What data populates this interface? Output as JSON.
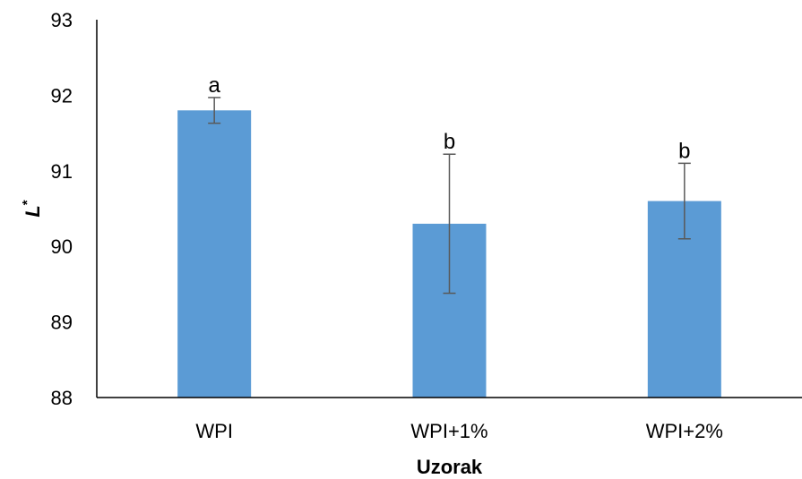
{
  "chart_data": {
    "type": "bar",
    "title": "",
    "xlabel": "Uzorak",
    "ylabel": {
      "main": "L",
      "sup": "*"
    },
    "ylim": [
      88,
      93
    ],
    "yticks": [
      "88",
      "89",
      "90",
      "91",
      "92",
      "93"
    ],
    "categories": [
      "WPI",
      "WPI+1%",
      "WPI+2%"
    ],
    "values": [
      91.8,
      90.3,
      90.6
    ],
    "errors": [
      0.17,
      0.92,
      0.5
    ],
    "labels": [
      "a",
      "b",
      "b"
    ],
    "grid": false,
    "legend": "none",
    "bar_color": "#5B9BD5",
    "error_color": "#595959",
    "axis_color": "#000000"
  }
}
